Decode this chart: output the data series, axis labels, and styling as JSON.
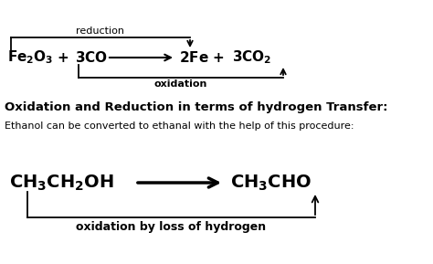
{
  "bg_color": "#ffffff",
  "font_color": "#000000",
  "reduction_label": "reduction",
  "oxidation_label": "oxidation",
  "section_title": "Oxidation and Reduction in terms of hydrogen Transfer:",
  "subtitle": "Ethanol can be converted to ethanal with the help of this procedure:",
  "bottom_label": "oxidation by loss of hydrogen",
  "figsize": [
    4.74,
    2.89
  ],
  "dpi": 100,
  "eq1": {
    "fe2o3": "$\\mathbf{Fe_2O_3}$",
    "plus": "$\\mathbf{+}$",
    "co": "$\\mathbf{3CO}$",
    "fe": "$\\mathbf{2Fe}$",
    "co2": "$\\mathbf{3CO_2}$"
  },
  "eq2": {
    "ethanol": "$\\mathbf{CH_3CH_2OH}$",
    "ethanal": "$\\mathbf{CH_3CHO}$"
  }
}
